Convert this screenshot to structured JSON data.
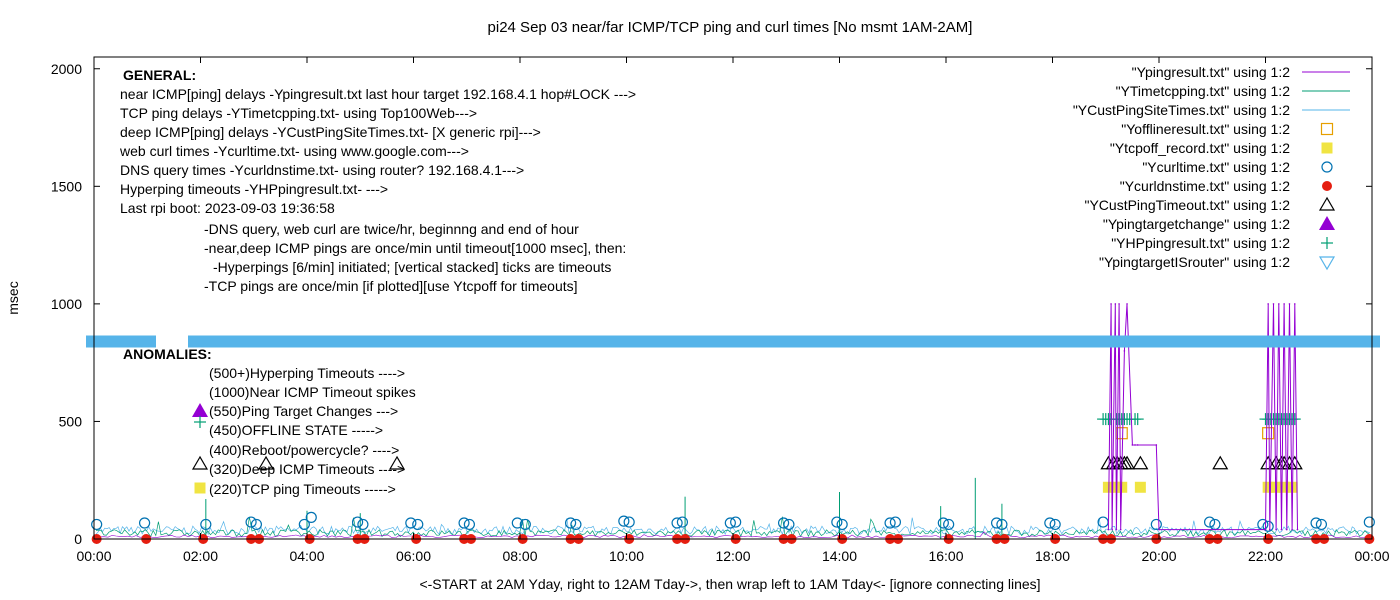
{
  "chart_data": {
    "type": "scatter",
    "title": "pi24 Sep 03  near/far ICMP/TCP ping and curl times [No msmt 1AM-2AM]",
    "xlabel": "<-START at 2AM Yday, right to 12AM Tday->, then wrap left to 1AM Tday<- [ignore connecting lines]",
    "ylabel": "msec",
    "x_range_hours": [
      0,
      24
    ],
    "ylim": [
      0,
      2050
    ],
    "x_ticks": [
      {
        "h": 0,
        "label": "00:00"
      },
      {
        "h": 2,
        "label": "02:00"
      },
      {
        "h": 4,
        "label": "04:00"
      },
      {
        "h": 6,
        "label": "06:00"
      },
      {
        "h": 8,
        "label": "08:00"
      },
      {
        "h": 10,
        "label": "10:00"
      },
      {
        "h": 12,
        "label": "12:00"
      },
      {
        "h": 14,
        "label": "14:00"
      },
      {
        "h": 16,
        "label": "16:00"
      },
      {
        "h": 18,
        "label": "18:00"
      },
      {
        "h": 20,
        "label": "20:00"
      },
      {
        "h": 22,
        "label": "22:00"
      },
      {
        "h": 24,
        "label": "00:00"
      }
    ],
    "y_ticks": [
      {
        "v": 0,
        "label": "0"
      },
      {
        "v": 500,
        "label": "500"
      },
      {
        "v": 1000,
        "label": "1000"
      },
      {
        "v": 1500,
        "label": "1500"
      },
      {
        "v": 2000,
        "label": "2000"
      }
    ],
    "grid": false,
    "legend_position": "top-right",
    "legend": [
      {
        "label": "\"Ypingresult.txt\" using 1:2",
        "kind": "line",
        "color": "#9400d3"
      },
      {
        "label": "\"YTimetcpping.txt\" using 1:2",
        "kind": "line",
        "color": "#009e73"
      },
      {
        "label": "\"YCustPingSiteTimes.txt\" using 1:2",
        "kind": "line",
        "color": "#56b4e9"
      },
      {
        "label": "\"Yofflineresult.txt\" using 1:2",
        "kind": "open-square",
        "color": "#e69f00"
      },
      {
        "label": "\"Ytcpoff_record.txt\" using 1:2",
        "kind": "filled-square",
        "color": "#f0e442"
      },
      {
        "label": "\"Ycurltime.txt\" using 1:2",
        "kind": "open-circle",
        "color": "#0072b2"
      },
      {
        "label": "\"Ycurldnstime.txt\" using 1:2",
        "kind": "filled-circle",
        "color": "#e51e10"
      },
      {
        "label": "\"YCustPingTimeout.txt\" using 1:2",
        "kind": "open-triangle",
        "color": "#000000"
      },
      {
        "label": "\"Ypingtargetchange\" using 1:2",
        "kind": "filled-triangle",
        "color": "#9400d3"
      },
      {
        "label": "\"YHPpingresult.txt\" using 1:2",
        "kind": "plus",
        "color": "#009e73"
      },
      {
        "label": "\"YpingtargetISrouter\" using 1:2",
        "kind": "open-down-triangle",
        "color": "#56b4e9"
      }
    ],
    "annotations_general": [
      "GENERAL:",
      "near ICMP[ping] delays -Ypingresult.txt last hour target 192.168.4.1 hop#LOCK --->",
      "TCP ping delays -YTimetcpping.txt- using Top100Web--->",
      "deep ICMP[ping] delays -YCustPingSiteTimes.txt- [X generic rpi]--->",
      "web curl times -Ycurltime.txt- using www.google.com--->",
      "DNS query times -Ycurldnstime.txt- using router? 192.168.4.1--->",
      "Hyperping timeouts -YHPpingresult.txt- --->",
      "Last rpi boot: 2023-09-03 19:36:58",
      "-DNS query, web curl are twice/hr, beginnng and end of hour",
      "-near,deep ICMP pings are once/min until timeout[1000 msec], then:",
      "-Hyperpings [6/min] initiated; [vertical stacked] ticks are timeouts",
      "-TCP pings are once/min [if plotted][use Ytcpoff for timeouts]"
    ],
    "annotations_anomalies": [
      "ANOMALIES:",
      "(500+)Hyperping Timeouts ---->",
      "(1000)Near ICMP Timeout spikes",
      "(550)Ping Target Changes --->",
      "(450)OFFLINE STATE ----->",
      "(400)Reboot/powercycle? ---->",
      "(320)Deep ICMP Timeouts ---->",
      "(220)TCP ping Timeouts ----->"
    ],
    "separator_band_y": 840,
    "series": [
      {
        "name": "\"Ycurldnstime.txt\" using 1:2",
        "kind": "filled-circle",
        "color": "#e51e10",
        "x_hours": [
          0.05,
          0.98,
          2.05,
          2.95,
          3.1,
          4.05,
          4.95,
          5.08,
          6.05,
          6.95,
          7.08,
          8.05,
          8.95,
          9.1,
          10.05,
          10.95,
          11.1,
          12.05,
          12.95,
          13.1,
          14.05,
          14.95,
          15.1,
          16.05,
          16.95,
          17.1,
          18.05,
          18.95,
          19.1,
          19.95,
          20.95,
          21.1,
          22.05,
          22.95,
          23.1,
          23.95
        ],
        "y_values": [
          0,
          0,
          0,
          0,
          0,
          0,
          0,
          0,
          0,
          0,
          0,
          0,
          0,
          0,
          0,
          0,
          0,
          0,
          0,
          0,
          0,
          0,
          0,
          0,
          0,
          0,
          0,
          0,
          0,
          0,
          0,
          0,
          0,
          0,
          0,
          0
        ]
      },
      {
        "name": "\"Ycurltime.txt\" using 1:2",
        "kind": "open-circle",
        "color": "#0072b2",
        "x_hours": [
          0.05,
          0.95,
          2.1,
          2.95,
          3.05,
          3.95,
          4.08,
          4.95,
          5.05,
          5.95,
          6.08,
          6.95,
          7.05,
          7.95,
          8.1,
          8.95,
          9.05,
          9.95,
          10.05,
          10.95,
          11.05,
          11.95,
          12.05,
          12.95,
          13.05,
          13.95,
          14.05,
          14.95,
          15.05,
          15.95,
          16.05,
          16.95,
          17.05,
          17.95,
          18.05,
          18.95,
          19.95,
          20.95,
          21.05,
          21.95,
          22.05,
          22.95,
          23.05,
          23.95
        ],
        "y_values": [
          62,
          68,
          62,
          72,
          62,
          62,
          92,
          72,
          62,
          68,
          62,
          68,
          62,
          68,
          62,
          68,
          62,
          76,
          72,
          68,
          72,
          68,
          72,
          68,
          62,
          72,
          62,
          68,
          72,
          68,
          62,
          68,
          62,
          68,
          62,
          72,
          62,
          72,
          62,
          62,
          54,
          68,
          62,
          72
        ]
      },
      {
        "name": "\"YCustPingTimeout.txt\" using 1:2",
        "kind": "open-triangle",
        "color": "#000000",
        "x_hours": [
          19.05,
          19.15,
          19.22,
          19.28,
          19.35,
          19.4,
          19.65,
          21.15,
          22.05,
          22.2,
          22.3,
          22.35,
          22.45,
          22.55
        ],
        "y_values": [
          320,
          320,
          320,
          320,
          320,
          320,
          320,
          320,
          320,
          320,
          320,
          320,
          320,
          320
        ]
      },
      {
        "name": "\"Ytcpoff_record.txt\" using 1:2",
        "kind": "filled-square",
        "color": "#f0e442",
        "x_hours": [
          19.05,
          19.2,
          19.3,
          19.65,
          22.05,
          22.2,
          22.35,
          22.5
        ],
        "y_values": [
          220,
          220,
          220,
          220,
          220,
          220,
          220,
          220
        ]
      },
      {
        "name": "\"Yofflineresult.txt\" using 1:2",
        "kind": "open-square",
        "color": "#e69f00",
        "x_hours": [
          19.3,
          22.05
        ],
        "y_values": [
          450,
          450
        ]
      },
      {
        "name": "\"YHPpingresult.txt\" using 1:2",
        "kind": "plus",
        "color": "#009e73",
        "x_hours": [
          18.95,
          19.0,
          19.05,
          19.1,
          19.2,
          19.25,
          19.3,
          19.35,
          19.4,
          19.45,
          19.55,
          19.6,
          22.0,
          22.05,
          22.1,
          22.15,
          22.2,
          22.25,
          22.3,
          22.35,
          22.4,
          22.45,
          22.5,
          22.55
        ],
        "y_values": [
          510,
          510,
          510,
          510,
          510,
          510,
          510,
          510,
          510,
          510,
          510,
          510,
          510,
          510,
          510,
          510,
          510,
          510,
          510,
          510,
          510,
          510,
          510,
          510
        ]
      },
      {
        "name": "\"Ypingresult.txt\" using 1:2",
        "kind": "line",
        "color": "#9400d3",
        "x_hours": [
          19.05,
          19.1,
          19.12,
          19.18,
          19.2,
          19.25,
          19.28,
          19.35,
          19.4,
          19.5,
          19.55,
          19.6,
          19.95,
          20.0,
          22.0,
          22.05,
          22.08,
          22.15,
          22.2,
          22.25,
          22.3,
          22.35,
          22.4,
          22.45,
          22.5,
          22.55,
          22.6
        ],
        "y_values": [
          40,
          1000,
          40,
          1000,
          40,
          1000,
          40,
          800,
          1000,
          400,
          400,
          400,
          400,
          40,
          40,
          1000,
          40,
          1000,
          40,
          1000,
          40,
          1000,
          40,
          1000,
          40,
          1000,
          40
        ]
      }
    ]
  }
}
